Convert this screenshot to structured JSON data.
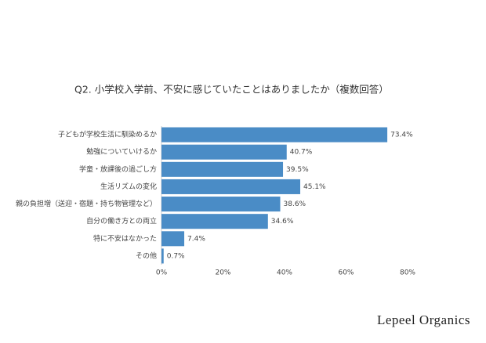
{
  "chart_data": {
    "type": "bar",
    "orientation": "horizontal",
    "title": "Q2. 小学校入学前、不安に感じていたことはありましたか（複数回答）",
    "categories": [
      "子どもが学校生活に馴染めるか",
      "勉強についていけるか",
      "学童・放課後の過ごし方",
      "生活リズムの変化",
      "親の負担増（送迎・宿題・持ち物管理など）",
      "自分の働き方との両立",
      "特に不安はなかった",
      "その他"
    ],
    "values": [
      73.4,
      40.7,
      39.5,
      45.1,
      38.6,
      34.6,
      7.4,
      0.7
    ],
    "value_labels": [
      "73.4%",
      "40.7%",
      "39.5%",
      "45.1%",
      "38.6%",
      "34.6%",
      "7.4%",
      "0.7%"
    ],
    "color": "#4a8cc6",
    "xlim": [
      0,
      80
    ],
    "xticks": [
      {
        "value": 0,
        "label": "0%"
      },
      {
        "value": 20,
        "label": "20%"
      },
      {
        "value": 40,
        "label": "40%"
      },
      {
        "value": 60,
        "label": "60%"
      },
      {
        "value": 80,
        "label": "80%"
      }
    ],
    "grid": false
  },
  "brand": "Lepeel Organics"
}
